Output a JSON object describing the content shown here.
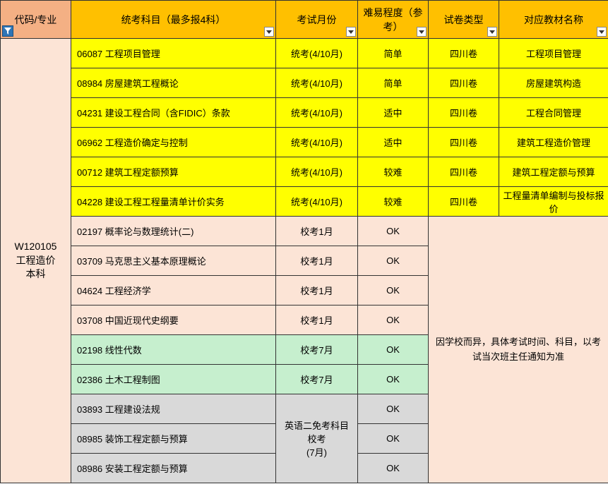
{
  "colors": {
    "header_code": "#f4b084",
    "header_orange": "#ffc000",
    "yellow": "#ffff00",
    "peach": "#fce4d6",
    "green": "#c6efce",
    "gray": "#d9d9d9"
  },
  "headers": {
    "code": "代码/专业",
    "subject": "统考科目（最多报4科）",
    "month": "考试月份",
    "difficulty": "难易程度（参考）",
    "paper": "试卷类型",
    "textbook": "对应教材名称"
  },
  "majorCode": "W120105\n工程造价\n本科",
  "rows": [
    {
      "bg": "yellow",
      "code": "06087",
      "name": "工程项目管理",
      "month": "统考(4/10月)",
      "diff": "简单",
      "paper": "四川卷",
      "book": "工程项目管理"
    },
    {
      "bg": "yellow",
      "code": "08984",
      "name": "房屋建筑工程概论",
      "month": "统考(4/10月)",
      "diff": "简单",
      "paper": "四川卷",
      "book": "房屋建筑构造"
    },
    {
      "bg": "yellow",
      "code": "04231",
      "name": "建设工程合同（含FIDIC）条款",
      "month": "统考(4/10月)",
      "diff": "适中",
      "paper": "四川卷",
      "book": "工程合同管理"
    },
    {
      "bg": "yellow",
      "code": "06962",
      "name": "工程造价确定与控制",
      "month": "统考(4/10月)",
      "diff": "适中",
      "paper": "四川卷",
      "book": "建筑工程造价管理"
    },
    {
      "bg": "yellow",
      "code": "00712",
      "name": "建筑工程定额预算",
      "month": "统考(4/10月)",
      "diff": "较难",
      "paper": "四川卷",
      "book": "建筑工程定额与预算"
    },
    {
      "bg": "yellow",
      "code": "04228",
      "name": "建设工程工程量清单计价实务",
      "month": "统考(4/10月)",
      "diff": "较难",
      "paper": "四川卷",
      "book": "工程量清单编制与投标报价"
    },
    {
      "bg": "peach",
      "code": "02197",
      "name": "概率论与数理统计(二)",
      "month": "校考1月",
      "diff": "OK"
    },
    {
      "bg": "peach",
      "code": "03709",
      "name": "马克思主义基本原理概论",
      "month": "校考1月",
      "diff": "OK"
    },
    {
      "bg": "peach",
      "code": "04624",
      "name": "工程经济学",
      "month": "校考1月",
      "diff": "OK"
    },
    {
      "bg": "peach",
      "code": "03708",
      "name": "中国近现代史纲要",
      "month": "校考1月",
      "diff": "OK"
    },
    {
      "bg": "green",
      "code": "02198",
      "name": "线性代数",
      "month": "校考7月",
      "diff": "OK"
    },
    {
      "bg": "green",
      "code": "02386",
      "name": "土木工程制图",
      "month": "校考7月",
      "diff": "OK"
    },
    {
      "bg": "gray",
      "code": "03893",
      "name": "工程建设法规",
      "diff": "OK"
    },
    {
      "bg": "gray",
      "code": "08985",
      "name": "装饰工程定额与预算",
      "diff": "OK"
    },
    {
      "bg": "gray",
      "code": "08986",
      "name": "安装工程定额与预算",
      "diff": "OK"
    }
  ],
  "mergedMonth": "英语二免考科目　校考\n(7月)",
  "mergedNote": "因学校而异，具体考试时间、科目，以考试当次班主任通知为准"
}
